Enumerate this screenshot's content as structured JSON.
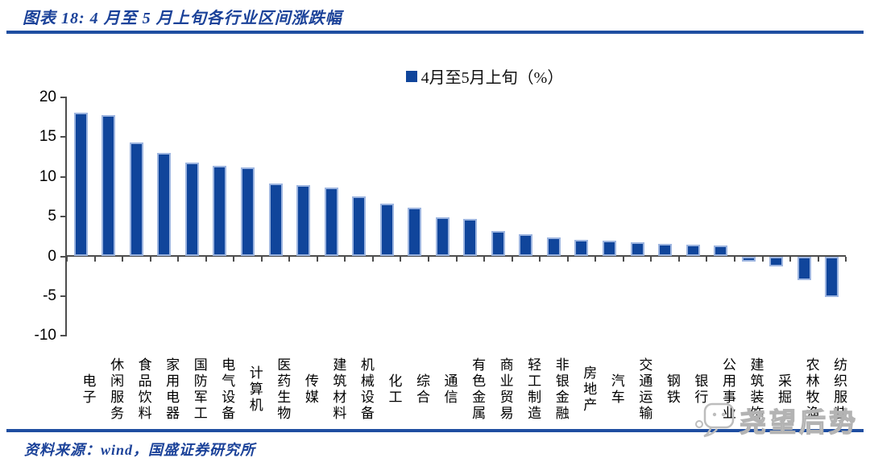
{
  "header": {
    "title": "图表 18: 4 月至 5 月上旬各行业区间涨跌幅"
  },
  "legend": {
    "label": "4月至5月上旬（%）",
    "marker_color": "#10459b"
  },
  "chart_data": {
    "type": "bar",
    "title": "4月至5月上旬各行业区间涨跌幅",
    "legend": "4月至5月上旬（%）",
    "legend_position": "top-center",
    "grid": false,
    "xlabel": "",
    "ylabel": "",
    "ylim": [
      -10,
      20
    ],
    "yticks": [
      20,
      15,
      10,
      5,
      0,
      -5,
      -10
    ],
    "bar_color": "#10459b",
    "bar_border_color": "#9db5e0",
    "categories": [
      "电子",
      "休闲服务",
      "食品饮料",
      "家用电器",
      "国防军工",
      "电气设备",
      "计算机",
      "医药生物",
      "传媒",
      "建筑材料",
      "机械设备",
      "化工",
      "综合",
      "通信",
      "有色金属",
      "商业贸易",
      "轻工制造",
      "非银金融",
      "房地产",
      "汽车",
      "交通运输",
      "钢铁",
      "银行",
      "公用事业",
      "建筑装饰",
      "采掘",
      "农林牧渔",
      "纺织服装"
    ],
    "values": [
      18.1,
      17.8,
      14.3,
      13.0,
      11.8,
      11.4,
      11.2,
      9.2,
      9.0,
      8.7,
      7.5,
      6.6,
      6.1,
      4.9,
      4.7,
      3.2,
      2.8,
      2.4,
      2.1,
      2.0,
      1.8,
      1.6,
      1.5,
      1.4,
      -0.7,
      -1.3,
      -3.0,
      -5.1
    ]
  },
  "footer": {
    "source": "资料来源：wind，国盛证券研究所"
  },
  "watermark": {
    "text": "尧望后势",
    "icon": "chat-bubble-smiley-icon"
  }
}
